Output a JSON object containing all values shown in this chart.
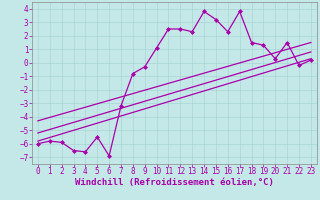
{
  "xlabel": "Windchill (Refroidissement éolien,°C)",
  "background_color": "#c4e8e8",
  "line_color": "#aa00aa",
  "xlim": [
    -0.5,
    23.5
  ],
  "ylim": [
    -7.5,
    4.5
  ],
  "xticks": [
    0,
    1,
    2,
    3,
    4,
    5,
    6,
    7,
    8,
    9,
    10,
    11,
    12,
    13,
    14,
    15,
    16,
    17,
    18,
    19,
    20,
    21,
    22,
    23
  ],
  "yticks": [
    -7,
    -6,
    -5,
    -4,
    -3,
    -2,
    -1,
    0,
    1,
    2,
    3,
    4
  ],
  "line1_x": [
    0,
    1,
    2,
    3,
    4,
    5,
    6,
    7,
    8,
    9,
    10,
    11,
    12,
    13,
    14,
    15,
    16,
    17,
    18,
    19,
    20,
    21,
    22,
    23
  ],
  "line1_y": [
    -6.0,
    -5.8,
    -5.9,
    -6.5,
    -6.6,
    -5.5,
    -6.9,
    -3.2,
    -0.8,
    -0.3,
    1.1,
    2.5,
    2.5,
    2.3,
    3.8,
    3.2,
    2.3,
    3.8,
    1.5,
    1.3,
    0.3,
    1.5,
    -0.2,
    0.2
  ],
  "line2_x": [
    0,
    23
  ],
  "line2_y": [
    -5.8,
    0.3
  ],
  "line3_x": [
    0,
    23
  ],
  "line3_y": [
    -5.2,
    0.8
  ],
  "line4_x": [
    0,
    23
  ],
  "line4_y": [
    -4.3,
    1.5
  ],
  "grid_color": "#aad4d4",
  "tick_fontsize": 5.5,
  "xlabel_fontsize": 6.5,
  "spine_color": "#888888"
}
